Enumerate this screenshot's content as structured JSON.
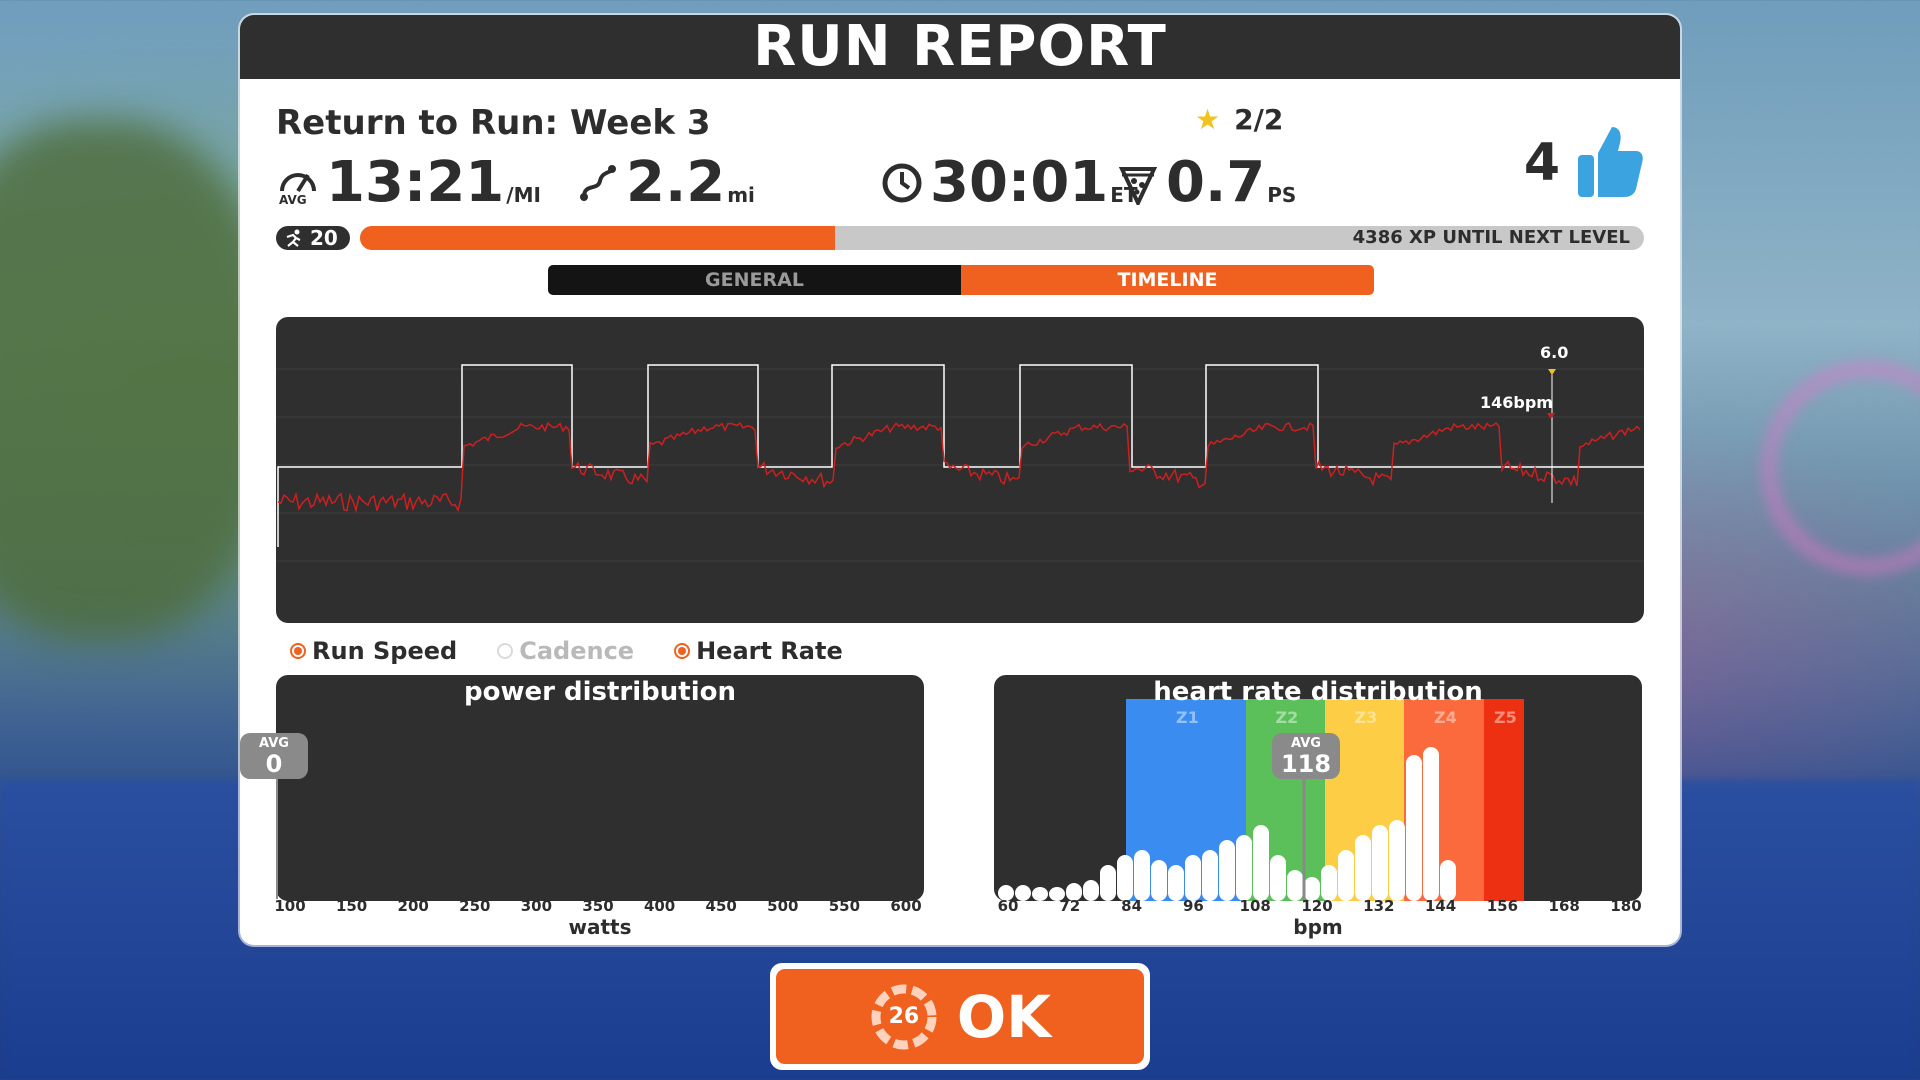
{
  "header": {
    "title": "RUN REPORT"
  },
  "workout": {
    "name": "Return to Run: Week 3",
    "stars": "2/2",
    "star_icon": "star-icon"
  },
  "stats": {
    "pace": {
      "value": "13:21",
      "unit": "/MI",
      "icon": "avg-pace-gauge-icon"
    },
    "distance": {
      "value": "2.2",
      "unit": "mi",
      "icon": "route-icon"
    },
    "time": {
      "value": "30:01",
      "unit": "ET",
      "icon": "clock-icon"
    },
    "pizza": {
      "value": "0.7",
      "unit": "PS",
      "icon": "pizza-icon"
    },
    "likes": {
      "value": "4",
      "icon": "thumbs-up-icon"
    }
  },
  "level": {
    "number": "20",
    "xp_text": "4386 XP UNTIL NEXT LEVEL",
    "progress": 0.37
  },
  "tabs": {
    "general": "GENERAL",
    "timeline": "TIMELINE",
    "active": "timeline"
  },
  "timeline": {
    "speed_callout": "6.0",
    "hr_callout": "146bpm",
    "colors": {
      "speed": "#ffffff",
      "heart_rate": "#cc2020"
    }
  },
  "legend": {
    "run_speed": "Run Speed",
    "cadence": "Cadence",
    "heart_rate": "Heart Rate"
  },
  "power_distribution": {
    "title": "power distribution",
    "avg_label": "AVG",
    "avg_value": "0",
    "xlabel": "watts",
    "ticks": [
      "100",
      "150",
      "200",
      "250",
      "300",
      "350",
      "400",
      "450",
      "500",
      "550",
      "600"
    ]
  },
  "hr_distribution": {
    "title": "heart rate distribution",
    "avg_label": "AVG",
    "avg_value": "118",
    "xlabel": "bpm",
    "ticks": [
      "60",
      "72",
      "84",
      "96",
      "108",
      "120",
      "132",
      "144",
      "156",
      "168",
      "180"
    ],
    "zones": [
      {
        "name": "Z1",
        "color": "#3a8cf0"
      },
      {
        "name": "Z2",
        "color": "#5cc05a"
      },
      {
        "name": "Z3",
        "color": "#fccd45"
      },
      {
        "name": "Z4",
        "color": "#fb6a3c"
      },
      {
        "name": "Z5",
        "color": "#ee3012"
      }
    ]
  },
  "ok_button": {
    "label": "OK",
    "countdown": "26"
  },
  "colors": {
    "accent": "#f0601e",
    "dark": "#2f2f2f"
  }
}
